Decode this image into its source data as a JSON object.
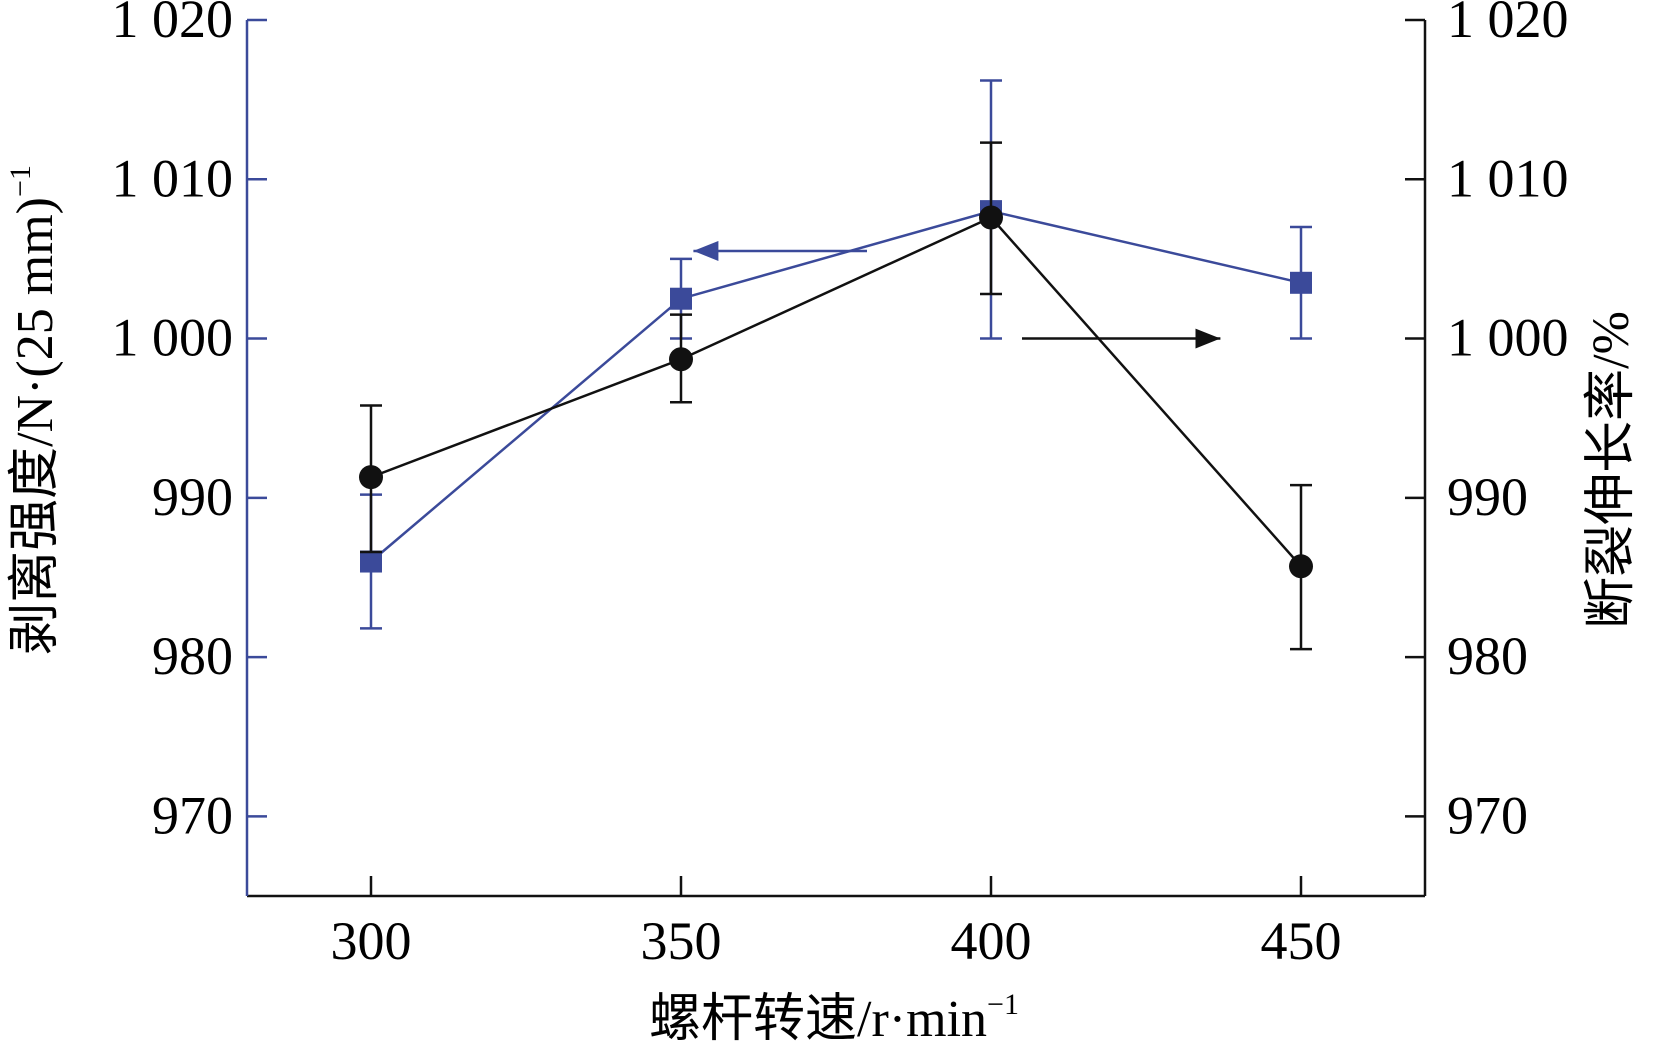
{
  "chart_data": {
    "type": "line",
    "x": [
      300,
      350,
      400,
      450
    ],
    "xlim": [
      280,
      470
    ],
    "ylim": [
      965,
      1020
    ],
    "y2lim": [
      965,
      1020
    ],
    "xticks": [
      300,
      350,
      400,
      450
    ],
    "yticks": [
      970,
      980,
      990,
      1000,
      1010,
      1020
    ],
    "xtick_labels": [
      "300",
      "350",
      "400",
      "450"
    ],
    "ytick_labels": [
      "970",
      "980",
      "990",
      "1 000",
      "1 010",
      "1 020"
    ],
    "y2tick_labels": [
      "970",
      "980",
      "990",
      "1 000",
      "1 010",
      "1 020"
    ],
    "xlabel": {
      "text": "螺杆转速/r·min",
      "sup": "−1"
    },
    "ylabel": {
      "text": "剥离强度/N·(25 mm)",
      "sup": "−1"
    },
    "y2label": {
      "text": "断裂伸长率/%"
    },
    "grid": false,
    "series": [
      {
        "axis": "left",
        "color": "#3b4a9a",
        "marker": "square",
        "values": [
          986,
          1002.5,
          1008,
          1003.5
        ],
        "error_low": [
          981.8,
          1000.0,
          1000.0,
          1000.0
        ],
        "error_high": [
          990.2,
          1005.0,
          1016.2,
          1007.0
        ],
        "pointer_arrow": {
          "from": [
            380,
            1005.5
          ],
          "to": [
            352,
            1005.5
          ],
          "direction": "left"
        }
      },
      {
        "axis": "right",
        "color": "#111111",
        "marker": "circle",
        "values": [
          991.3,
          998.7,
          1007.6,
          985.7
        ],
        "error_low": [
          986.6,
          996.0,
          1002.8,
          980.5
        ],
        "error_high": [
          995.8,
          1001.5,
          1012.3,
          990.8
        ],
        "pointer_arrow": {
          "from": [
            405,
            1000
          ],
          "to": [
            437,
            1000
          ],
          "direction": "right"
        }
      }
    ]
  }
}
